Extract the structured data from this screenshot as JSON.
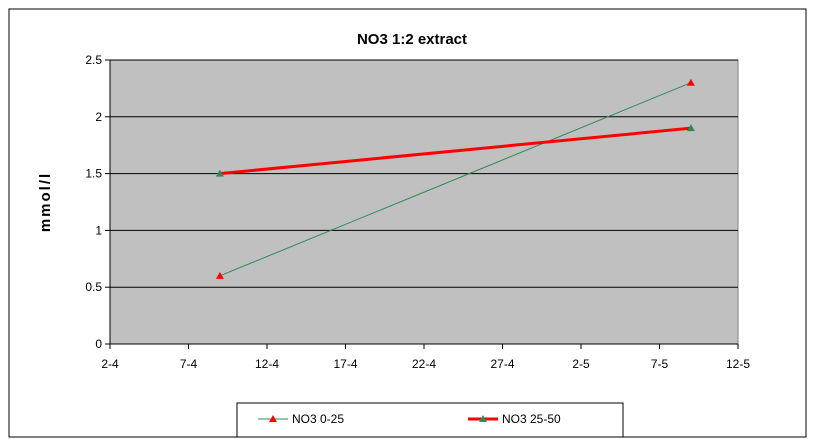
{
  "chart_data": {
    "type": "line",
    "title": "NO3 1:2 extract",
    "ylabel": "mmol/l",
    "xlabel": "",
    "x_ticks": [
      "2-4",
      "7-4",
      "12-4",
      "17-4",
      "22-4",
      "27-4",
      "2-5",
      "7-5",
      "12-5"
    ],
    "y_ticks": [
      "0",
      "0.5",
      "1",
      "1.5",
      "2",
      "2.5"
    ],
    "ylim": [
      0,
      2.5
    ],
    "grid": true,
    "legend_position": "bottom",
    "x": [
      "2008-04-09",
      "2008-05-09"
    ],
    "series": [
      {
        "name": "NO3 0-25",
        "values": [
          0.6,
          2.3
        ],
        "line_color": "#2e8b57",
        "marker_color": "#ff0000",
        "line_width": "thin"
      },
      {
        "name": "NO3 25-50",
        "values": [
          1.5,
          1.9
        ],
        "line_color": "#ff0000",
        "marker_color": "#2e8b57",
        "line_width": "thick"
      }
    ],
    "colors": {
      "plot_background": "#c0c0c0",
      "gridline": "#000000"
    }
  }
}
